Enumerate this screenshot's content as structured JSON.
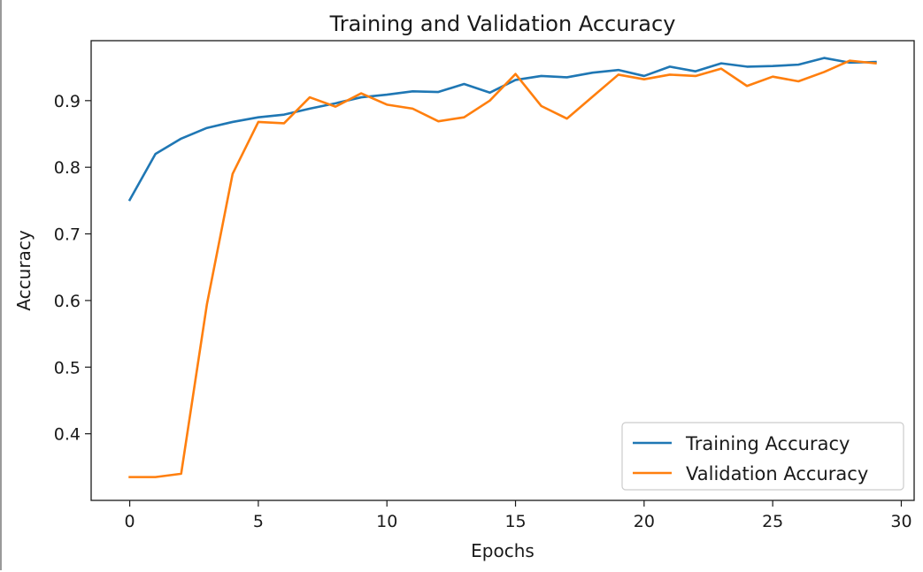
{
  "chart_data": {
    "type": "line",
    "title": "Training and Validation Accuracy",
    "xlabel": "Epochs",
    "ylabel": "Accuracy",
    "xlim": [
      -1.5,
      30.5
    ],
    "ylim": [
      0.3,
      0.99
    ],
    "xticks": [
      0,
      5,
      10,
      15,
      20,
      25,
      30
    ],
    "yticks": [
      0.4,
      0.5,
      0.6,
      0.7,
      0.8,
      0.9
    ],
    "ytick_labels": [
      "0.4",
      "0.5",
      "0.6",
      "0.7",
      "0.8",
      "0.9"
    ],
    "grid": false,
    "legend_position": "lower-right",
    "x": [
      0,
      1,
      2,
      3,
      4,
      5,
      6,
      7,
      8,
      9,
      10,
      11,
      12,
      13,
      14,
      15,
      16,
      17,
      18,
      19,
      20,
      21,
      22,
      23,
      24,
      25,
      26,
      27,
      28,
      29
    ],
    "series": [
      {
        "name": "Training Accuracy",
        "color": "#1f77b4",
        "values": [
          0.751,
          0.82,
          0.843,
          0.859,
          0.868,
          0.875,
          0.879,
          0.888,
          0.896,
          0.905,
          0.909,
          0.914,
          0.913,
          0.925,
          0.912,
          0.931,
          0.937,
          0.935,
          0.942,
          0.946,
          0.937,
          0.951,
          0.944,
          0.956,
          0.951,
          0.952,
          0.954,
          0.964,
          0.957,
          0.958
        ]
      },
      {
        "name": "Validation Accuracy",
        "color": "#ff7f0e",
        "values": [
          0.335,
          0.335,
          0.34,
          0.594,
          0.79,
          0.868,
          0.866,
          0.905,
          0.891,
          0.911,
          0.894,
          0.888,
          0.869,
          0.875,
          0.9,
          0.94,
          0.892,
          0.873,
          0.906,
          0.939,
          0.932,
          0.939,
          0.937,
          0.948,
          0.922,
          0.936,
          0.929,
          0.943,
          0.96,
          0.956
        ]
      }
    ]
  }
}
